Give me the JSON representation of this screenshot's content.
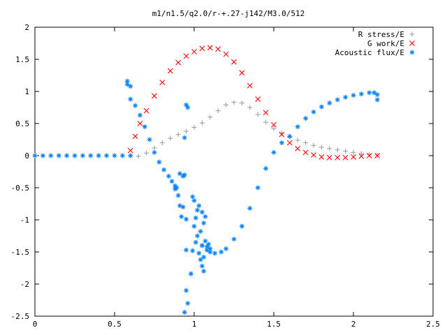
{
  "chart_data": {
    "type": "scatter",
    "title": "m1/n1.5/q2.0/r-+.27-j142/M3.0/512",
    "xlabel": "",
    "ylabel": "",
    "xlim": [
      0,
      2.5
    ],
    "ylim": [
      -2.5,
      2
    ],
    "x_ticks": [
      "0",
      "0.5",
      "1",
      "1.5",
      "2",
      "2.5"
    ],
    "y_ticks": [
      "2",
      "1.5",
      "1",
      "0.5",
      "0",
      "-0.5",
      "-1",
      "-1.5",
      "-2",
      "-2.5"
    ],
    "grid": false,
    "legend": "top-right",
    "series": [
      {
        "name": "R stress/E",
        "marker": "+",
        "color": "#a0a0a0",
        "points": [
          [
            0.6,
            0.0
          ],
          [
            0.65,
            -0.01
          ],
          [
            0.7,
            0.04
          ],
          [
            0.75,
            0.12
          ],
          [
            0.8,
            0.2
          ],
          [
            0.85,
            0.27
          ],
          [
            0.9,
            0.33
          ],
          [
            0.95,
            0.38
          ],
          [
            1.0,
            0.44
          ],
          [
            1.05,
            0.51
          ],
          [
            1.1,
            0.6
          ],
          [
            1.15,
            0.7
          ],
          [
            1.2,
            0.79
          ],
          [
            1.25,
            0.83
          ],
          [
            1.3,
            0.82
          ],
          [
            1.35,
            0.75
          ],
          [
            1.4,
            0.64
          ],
          [
            1.45,
            0.52
          ],
          [
            1.5,
            0.42
          ],
          [
            1.55,
            0.35
          ],
          [
            1.6,
            0.29
          ],
          [
            1.65,
            0.24
          ],
          [
            1.7,
            0.2
          ],
          [
            1.75,
            0.16
          ],
          [
            1.8,
            0.13
          ],
          [
            1.85,
            0.11
          ],
          [
            1.9,
            0.09
          ],
          [
            1.95,
            0.07
          ],
          [
            2.0,
            0.05
          ],
          [
            2.05,
            0.03
          ],
          [
            2.1,
            0.02
          ],
          [
            2.15,
            0.01
          ]
        ]
      },
      {
        "name": "G work/E",
        "marker": "x",
        "color": "#ff0000",
        "points": [
          [
            0.6,
            0.08
          ],
          [
            0.63,
            0.3
          ],
          [
            0.66,
            0.5
          ],
          [
            0.7,
            0.7
          ],
          [
            0.75,
            0.93
          ],
          [
            0.8,
            1.14
          ],
          [
            0.85,
            1.32
          ],
          [
            0.9,
            1.45
          ],
          [
            0.95,
            1.55
          ],
          [
            1.0,
            1.62
          ],
          [
            1.05,
            1.67
          ],
          [
            1.1,
            1.68
          ],
          [
            1.15,
            1.66
          ],
          [
            1.2,
            1.58
          ],
          [
            1.25,
            1.46
          ],
          [
            1.3,
            1.29
          ],
          [
            1.35,
            1.09
          ],
          [
            1.4,
            0.88
          ],
          [
            1.45,
            0.67
          ],
          [
            1.5,
            0.48
          ],
          [
            1.55,
            0.33
          ],
          [
            1.6,
            0.2
          ],
          [
            1.65,
            0.11
          ],
          [
            1.7,
            0.05
          ],
          [
            1.75,
            0.01
          ],
          [
            1.8,
            -0.02
          ],
          [
            1.85,
            -0.03
          ],
          [
            1.9,
            -0.03
          ],
          [
            1.95,
            -0.03
          ],
          [
            2.0,
            -0.02
          ],
          [
            2.05,
            -0.01
          ],
          [
            2.1,
            0.0
          ],
          [
            2.15,
            0.0
          ]
        ]
      },
      {
        "name": "Acoustic flux/E",
        "marker": "*",
        "color": "#0080ff",
        "points": [
          [
            0.0,
            0.0
          ],
          [
            0.05,
            0.0
          ],
          [
            0.1,
            0.0
          ],
          [
            0.15,
            0.0
          ],
          [
            0.2,
            0.0
          ],
          [
            0.25,
            0.0
          ],
          [
            0.3,
            0.0
          ],
          [
            0.35,
            0.0
          ],
          [
            0.4,
            0.0
          ],
          [
            0.45,
            0.0
          ],
          [
            0.5,
            0.0
          ],
          [
            0.55,
            0.0
          ],
          [
            0.6,
            0.0
          ],
          [
            0.6,
            0.88
          ],
          [
            0.63,
            0.78
          ],
          [
            0.66,
            0.63
          ],
          [
            0.69,
            0.45
          ],
          [
            0.72,
            0.25
          ],
          [
            0.75,
            0.05
          ],
          [
            0.78,
            -0.1
          ],
          [
            0.81,
            -0.22
          ],
          [
            0.84,
            -0.32
          ],
          [
            0.86,
            -0.4
          ],
          [
            0.88,
            -0.47
          ],
          [
            0.89,
            -0.5
          ],
          [
            1.05,
            -1.4
          ],
          [
            1.08,
            -1.47
          ],
          [
            1.1,
            -1.5
          ],
          [
            1.13,
            -1.52
          ],
          [
            1.17,
            -1.5
          ],
          [
            1.2,
            -1.45
          ],
          [
            1.25,
            -1.3
          ],
          [
            1.3,
            -1.1
          ],
          [
            1.35,
            -0.82
          ],
          [
            1.4,
            -0.5
          ],
          [
            1.45,
            -0.2
          ],
          [
            1.5,
            0.05
          ],
          [
            1.55,
            0.2
          ],
          [
            1.6,
            0.3
          ],
          [
            1.65,
            0.45
          ],
          [
            1.7,
            0.58
          ],
          [
            1.75,
            0.68
          ],
          [
            1.8,
            0.76
          ],
          [
            1.85,
            0.82
          ],
          [
            1.9,
            0.87
          ],
          [
            1.95,
            0.91
          ],
          [
            2.0,
            0.94
          ],
          [
            2.05,
            0.96
          ],
          [
            2.1,
            0.98
          ],
          [
            2.13,
            0.98
          ],
          [
            2.15,
            0.95
          ],
          [
            2.15,
            0.87
          ],
          [
            0.58,
            1.16
          ],
          [
            0.58,
            1.11
          ],
          [
            0.6,
            1.08
          ],
          [
            0.93,
            -0.32
          ],
          [
            0.94,
            -0.3
          ],
          [
            0.91,
            -0.28
          ],
          [
            0.88,
            -0.52
          ],
          [
            0.94,
            0.28
          ],
          [
            0.95,
            0.79
          ],
          [
            0.96,
            0.75
          ],
          [
            0.9,
            -0.62
          ],
          [
            0.91,
            -0.78
          ],
          [
            0.93,
            -0.8
          ],
          [
            0.92,
            -0.95
          ],
          [
            0.95,
            -0.99
          ],
          [
            0.99,
            -0.64
          ],
          [
            1.0,
            -0.7
          ],
          [
            1.02,
            -0.85
          ],
          [
            1.03,
            -0.78
          ],
          [
            1.05,
            -0.88
          ],
          [
            1.01,
            -0.97
          ],
          [
            1.0,
            -1.1
          ],
          [
            1.04,
            -1.18
          ],
          [
            1.06,
            -1.05
          ],
          [
            1.07,
            -0.95
          ],
          [
            1.02,
            -1.25
          ],
          [
            1.01,
            -1.35
          ],
          [
            0.99,
            -1.48
          ],
          [
            0.95,
            -1.47
          ],
          [
            1.03,
            -1.52
          ],
          [
            1.05,
            -1.4
          ],
          [
            1.07,
            -1.33
          ],
          [
            1.08,
            -1.42
          ],
          [
            1.04,
            -1.62
          ],
          [
            1.06,
            -1.58
          ],
          [
            1.05,
            -1.72
          ],
          [
            1.06,
            -1.8
          ],
          [
            0.98,
            -1.84
          ],
          [
            0.95,
            -2.1
          ],
          [
            0.96,
            -2.3
          ],
          [
            0.94,
            -2.44
          ],
          [
            1.09,
            -1.38
          ],
          [
            1.1,
            -1.45
          ]
        ]
      }
    ]
  }
}
